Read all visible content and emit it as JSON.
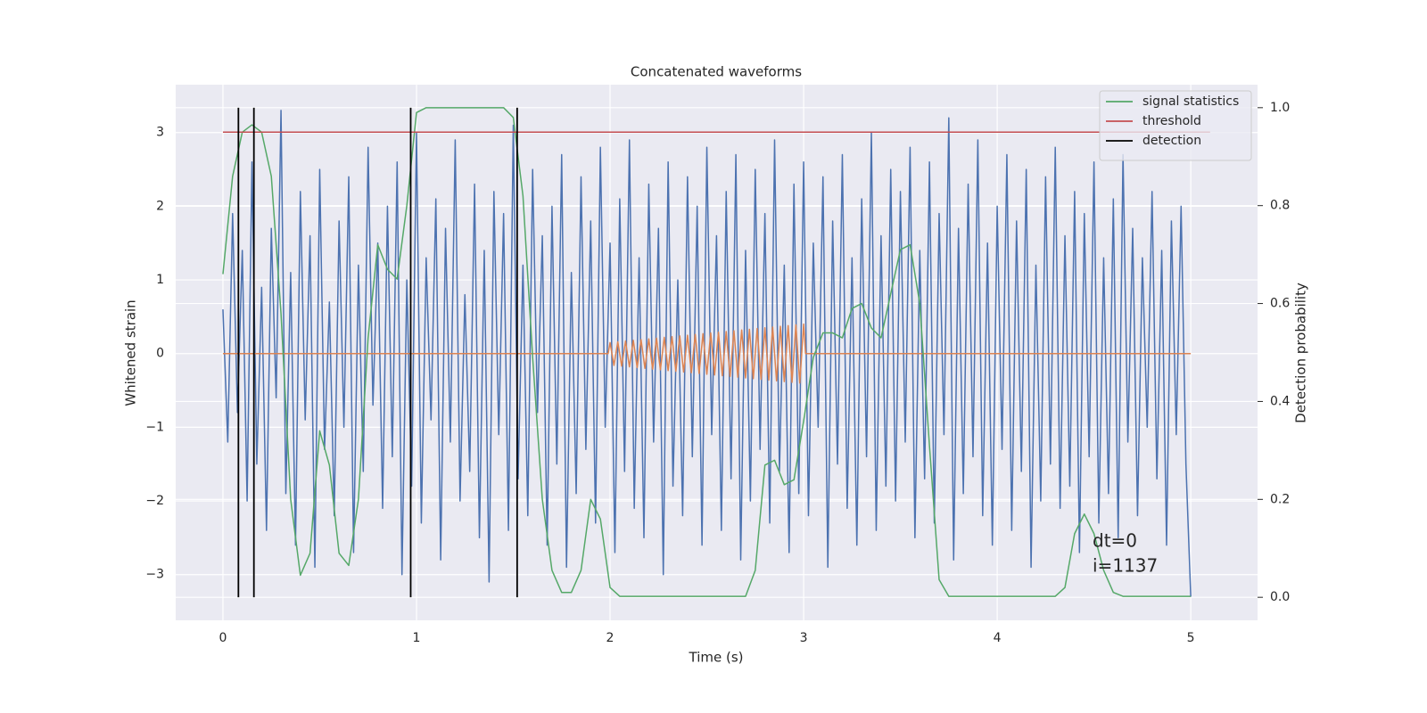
{
  "chart_data": {
    "type": "line",
    "title": "Concatenated waveforms",
    "x_label": "Time (s)",
    "y_label": "Whitened strain",
    "y2_label": "Detection probability",
    "xlim": [
      -0.244,
      5.345
    ],
    "ylim": [
      -3.62,
      3.65
    ],
    "y2lim": [
      -0.047,
      1.047
    ],
    "xticks": [
      0,
      1,
      2,
      3,
      4,
      5
    ],
    "yticks": [
      {
        "value": -3,
        "label": "−3"
      },
      {
        "value": -2,
        "label": "−2"
      },
      {
        "value": -1,
        "label": "−1"
      },
      0,
      1,
      2,
      3
    ],
    "y2ticks": [
      {
        "value": 0,
        "label": "0.0"
      },
      0.2,
      0.4,
      0.6,
      0.8,
      {
        "value": 1,
        "label": "1.0"
      }
    ],
    "grid": true,
    "legend": "upper right",
    "annotations": [
      "dt=0",
      "i=1137"
    ],
    "x": [
      0,
      0.025,
      0.05,
      0.075,
      0.1,
      0.125,
      0.15,
      0.175,
      0.2,
      0.225,
      0.25,
      0.275,
      0.3,
      0.325,
      0.35,
      0.375,
      0.4,
      0.425,
      0.45,
      0.475,
      0.5,
      0.525,
      0.55,
      0.575,
      0.6,
      0.625,
      0.65,
      0.675,
      0.7,
      0.725,
      0.75,
      0.775,
      0.8,
      0.825,
      0.85,
      0.875,
      0.9,
      0.925,
      0.95,
      0.975,
      1,
      1.025,
      1.05,
      1.075,
      1.1,
      1.125,
      1.15,
      1.175,
      1.2,
      1.225,
      1.25,
      1.275,
      1.3,
      1.325,
      1.35,
      1.375,
      1.4,
      1.425,
      1.45,
      1.475,
      1.5,
      1.525,
      1.55,
      1.575,
      1.6,
      1.625,
      1.65,
      1.675,
      1.7,
      1.725,
      1.75,
      1.775,
      1.8,
      1.825,
      1.85,
      1.875,
      1.9,
      1.925,
      1.95,
      1.975,
      2,
      2.025,
      2.05,
      2.075,
      2.1,
      2.125,
      2.15,
      2.175,
      2.2,
      2.225,
      2.25,
      2.275,
      2.3,
      2.325,
      2.35,
      2.375,
      2.4,
      2.425,
      2.45,
      2.475,
      2.5,
      2.525,
      2.55,
      2.575,
      2.6,
      2.625,
      2.65,
      2.675,
      2.7,
      2.725,
      2.75,
      2.775,
      2.8,
      2.825,
      2.85,
      2.875,
      2.9,
      2.925,
      2.95,
      2.975,
      3,
      3.025,
      3.05,
      3.075,
      3.1,
      3.125,
      3.15,
      3.175,
      3.2,
      3.225,
      3.25,
      3.275,
      3.3,
      3.325,
      3.35,
      3.375,
      3.4,
      3.425,
      3.45,
      3.475,
      3.5,
      3.525,
      3.55,
      3.575,
      3.6,
      3.625,
      3.65,
      3.675,
      3.7,
      3.725,
      3.75,
      3.775,
      3.8,
      3.825,
      3.85,
      3.875,
      3.9,
      3.925,
      3.95,
      3.975,
      4,
      4.025,
      4.05,
      4.075,
      4.1,
      4.125,
      4.15,
      4.175,
      4.2,
      4.225,
      4.25,
      4.275,
      4.3,
      4.325,
      4.35,
      4.375,
      4.4,
      4.425,
      4.45,
      4.475,
      4.5,
      4.525,
      4.55,
      4.575,
      4.6,
      4.625,
      4.65,
      4.675,
      4.7,
      4.725,
      4.75,
      4.775,
      4.8,
      4.825,
      4.85,
      4.875,
      4.9,
      4.925,
      4.95,
      4.975,
      5
    ],
    "series": [
      {
        "color": "#4c72b0",
        "values": [
          0.6,
          -1.2,
          1.9,
          -0.8,
          1.4,
          -2.0,
          2.6,
          -1.5,
          0.9,
          -2.4,
          1.7,
          -0.6,
          3.3,
          -1.9,
          1.1,
          -2.6,
          2.2,
          -0.9,
          1.6,
          -2.9,
          2.5,
          -1.3,
          0.7,
          -2.2,
          1.8,
          -1.0,
          2.4,
          -2.7,
          1.2,
          -1.6,
          2.8,
          -0.7,
          1.5,
          -2.1,
          2.0,
          -1.4,
          2.6,
          -3.0,
          1.0,
          -1.8,
          3.0,
          -2.3,
          1.3,
          -0.9,
          2.1,
          -2.8,
          1.7,
          -1.2,
          2.9,
          -2.0,
          0.8,
          -1.6,
          2.3,
          -2.5,
          1.4,
          -3.1,
          2.2,
          -1.1,
          1.9,
          -2.4,
          3.1,
          -1.7,
          1.2,
          -2.2,
          2.5,
          -0.8,
          1.6,
          -2.6,
          2.0,
          -1.5,
          2.7,
          -2.9,
          1.1,
          -1.9,
          2.4,
          -1.3,
          1.8,
          -2.3,
          2.8,
          -1.0,
          1.5,
          -2.7,
          2.1,
          -1.6,
          2.9,
          -2.1,
          1.3,
          -2.5,
          2.3,
          -1.2,
          1.7,
          -3.0,
          2.6,
          -1.8,
          1.0,
          -2.2,
          2.4,
          -1.4,
          2.0,
          -2.6,
          2.8,
          -1.1,
          1.6,
          -2.4,
          2.2,
          -1.7,
          2.7,
          -2.8,
          1.4,
          -2.0,
          2.5,
          -1.3,
          1.9,
          -2.3,
          2.9,
          -1.6,
          1.2,
          -2.7,
          2.3,
          -1.9,
          2.6,
          -2.2,
          1.5,
          -1.0,
          2.4,
          -2.9,
          1.8,
          -1.5,
          2.7,
          -2.1,
          1.3,
          -2.6,
          2.1,
          -1.4,
          3.0,
          -2.4,
          1.6,
          -1.8,
          2.5,
          -2.0,
          2.2,
          -1.2,
          2.8,
          -2.5,
          1.4,
          -1.7,
          2.6,
          -2.3,
          1.9,
          -1.1,
          3.2,
          -2.8,
          1.7,
          -1.9,
          2.3,
          -1.4,
          2.9,
          -2.2,
          1.5,
          -2.6,
          2.0,
          -1.3,
          2.7,
          -2.4,
          1.8,
          -1.6,
          2.5,
          -2.9,
          1.2,
          -2.0,
          2.4,
          -1.5,
          2.8,
          -2.1,
          1.6,
          -1.8,
          2.2,
          -2.7,
          1.9,
          -1.4,
          2.6,
          -2.3,
          1.3,
          -1.9,
          2.1,
          -2.5,
          2.7,
          -1.2,
          1.7,
          -2.2,
          1.3,
          -1.0,
          2.2,
          -1.7,
          1.4,
          -2.6,
          1.8,
          -1.1,
          2.0,
          -1.5,
          -3.3
        ]
      },
      {
        "color": "#dd8452",
        "x": [
          0,
          1.99,
          2,
          2.02,
          2.04,
          2.06,
          2.08,
          2.1,
          2.12,
          2.14,
          2.16,
          2.18,
          2.2,
          2.22,
          2.24,
          2.26,
          2.28,
          2.3,
          2.32,
          2.34,
          2.36,
          2.38,
          2.4,
          2.42,
          2.44,
          2.46,
          2.48,
          2.5,
          2.52,
          2.54,
          2.56,
          2.58,
          2.6,
          2.62,
          2.64,
          2.66,
          2.68,
          2.7,
          2.72,
          2.74,
          2.76,
          2.78,
          2.8,
          2.82,
          2.84,
          2.86,
          2.88,
          2.9,
          2.92,
          2.94,
          2.96,
          2.98,
          3,
          3.01,
          5
        ],
        "values": [
          0,
          0,
          0.15,
          -0.16,
          0.16,
          -0.17,
          0.17,
          -0.18,
          0.18,
          -0.19,
          0.19,
          -0.2,
          0.2,
          -0.21,
          0.21,
          -0.22,
          0.22,
          -0.23,
          0.23,
          -0.24,
          0.24,
          -0.25,
          0.25,
          -0.26,
          0.26,
          -0.27,
          0.27,
          -0.28,
          0.28,
          -0.29,
          0.29,
          -0.3,
          0.3,
          -0.31,
          0.31,
          -0.32,
          0.32,
          -0.33,
          0.33,
          -0.34,
          0.34,
          -0.35,
          0.35,
          -0.36,
          0.36,
          -0.37,
          0.37,
          -0.38,
          0.38,
          -0.39,
          0.39,
          -0.4,
          0.4,
          0,
          0
        ]
      },
      {
        "name": "signal statistics",
        "color": "#55a868",
        "axis": "y2",
        "x": [
          0,
          0.05,
          0.1,
          0.15,
          0.2,
          0.25,
          0.3,
          0.35,
          0.4,
          0.45,
          0.5,
          0.55,
          0.6,
          0.65,
          0.7,
          0.75,
          0.8,
          0.85,
          0.9,
          0.95,
          1,
          1.05,
          1.1,
          1.15,
          1.2,
          1.25,
          1.3,
          1.35,
          1.4,
          1.45,
          1.5,
          1.55,
          1.6,
          1.65,
          1.7,
          1.75,
          1.8,
          1.85,
          1.9,
          1.95,
          2,
          2.05,
          2.1,
          2.15,
          2.2,
          2.25,
          2.3,
          2.35,
          2.4,
          2.45,
          2.5,
          2.55,
          2.6,
          2.65,
          2.7,
          2.75,
          2.8,
          2.85,
          2.9,
          2.95,
          3,
          3.05,
          3.1,
          3.15,
          3.2,
          3.25,
          3.3,
          3.35,
          3.4,
          3.45,
          3.5,
          3.55,
          3.6,
          3.65,
          3.7,
          3.75,
          3.8,
          3.85,
          3.9,
          3.95,
          4,
          4.05,
          4.1,
          4.15,
          4.2,
          4.25,
          4.3,
          4.35,
          4.4,
          4.45,
          4.5,
          4.55,
          4.6,
          4.65,
          4.7,
          4.75,
          4.8,
          4.85,
          4.9,
          4.95,
          5
        ],
        "values": [
          0.66,
          0.86,
          0.95,
          0.965,
          0.95,
          0.86,
          0.58,
          0.2,
          0.045,
          0.09,
          0.34,
          0.27,
          0.09,
          0.065,
          0.2,
          0.53,
          0.72,
          0.67,
          0.65,
          0.8,
          0.99,
          1,
          1,
          1,
          1,
          1,
          1,
          1,
          1,
          1,
          0.98,
          0.82,
          0.49,
          0.2,
          0.055,
          0.01,
          0.01,
          0.055,
          0.2,
          0.16,
          0.02,
          0.002,
          0.002,
          0.002,
          0.002,
          0.002,
          0.002,
          0.002,
          0.002,
          0.002,
          0.002,
          0.002,
          0.002,
          0.002,
          0.002,
          0.055,
          0.27,
          0.28,
          0.23,
          0.24,
          0.36,
          0.49,
          0.54,
          0.54,
          0.53,
          0.59,
          0.6,
          0.55,
          0.53,
          0.62,
          0.71,
          0.72,
          0.6,
          0.31,
          0.036,
          0.002,
          0.002,
          0.002,
          0.002,
          0.002,
          0.002,
          0.002,
          0.002,
          0.002,
          0.002,
          0.002,
          0.002,
          0.02,
          0.13,
          0.17,
          0.13,
          0.055,
          0.01,
          0.002,
          0.002,
          0.002,
          0.002,
          0.002,
          0.002,
          0.002,
          0.002
        ]
      },
      {
        "name": "threshold",
        "color": "#c44e52",
        "axis": "y2",
        "x": [
          0,
          5.1
        ],
        "values": [
          0.95,
          0.95
        ]
      }
    ],
    "detection": {
      "name": "detection",
      "color": "#000000",
      "x": [
        0.08,
        0.16,
        0.97,
        1.52
      ],
      "y2_range": [
        0,
        1
      ]
    }
  }
}
